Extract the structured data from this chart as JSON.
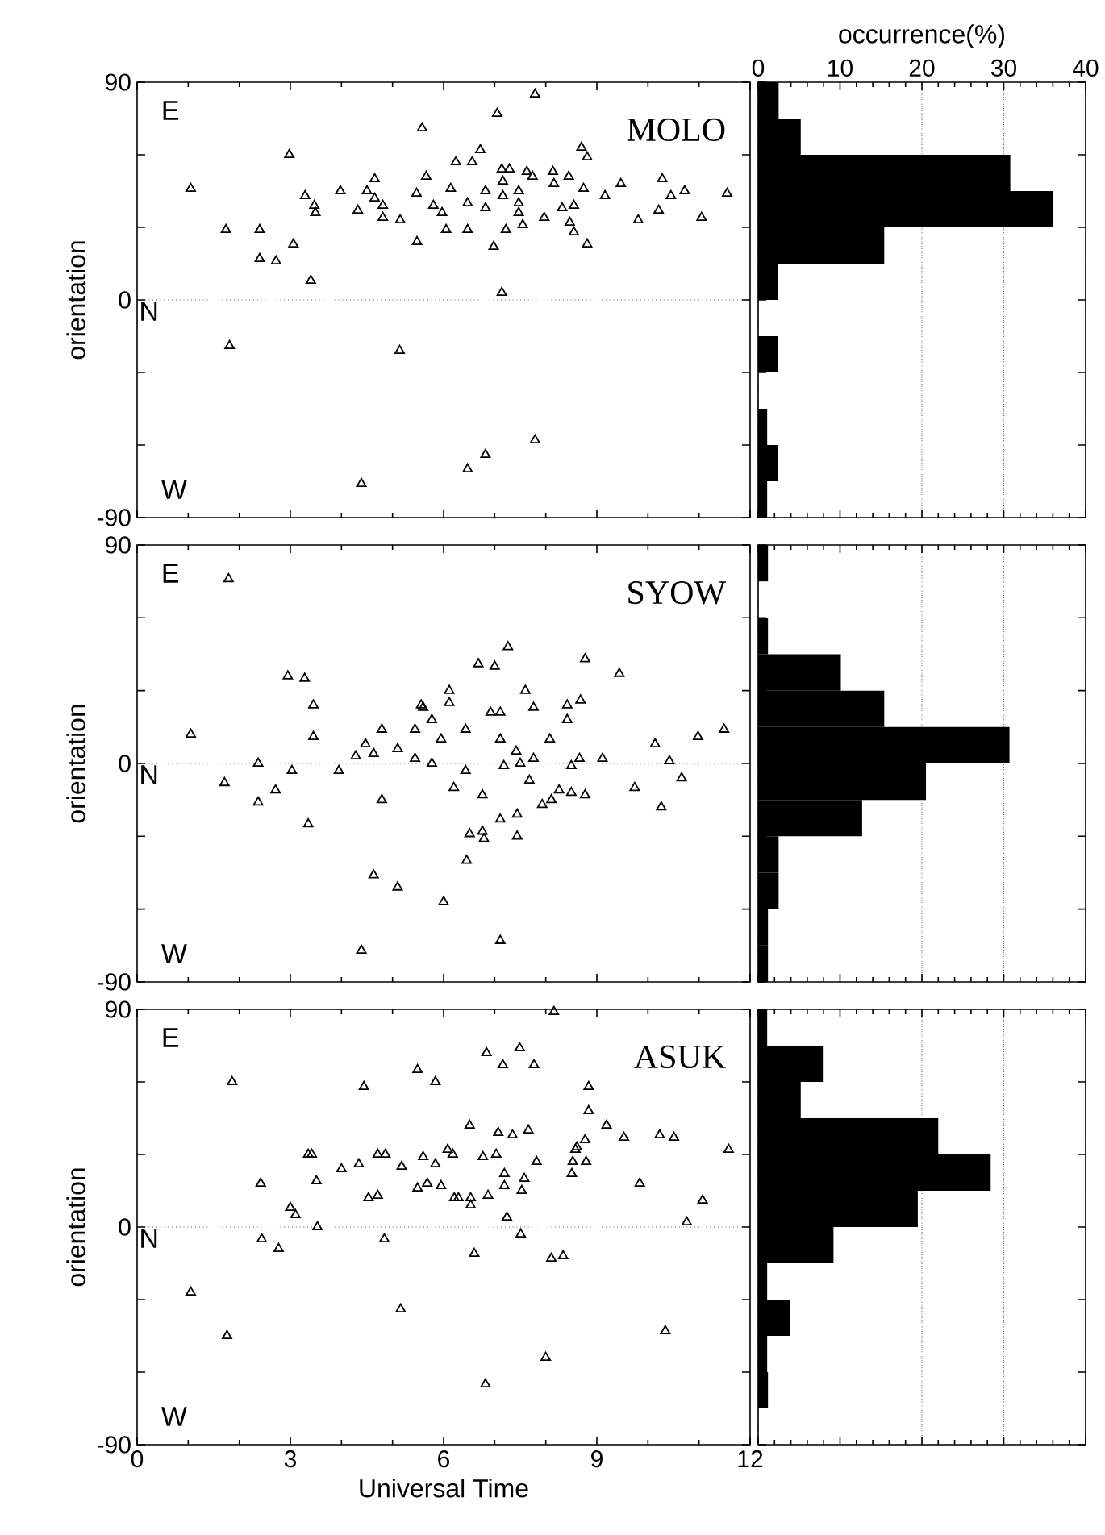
{
  "chart_data": [
    {
      "type": "scatter",
      "title": "MOLO",
      "ylabel": "orientation",
      "marker": "triangle",
      "color": "#000000",
      "x": [
        1.05,
        1.74,
        1.81,
        2.4,
        2.4,
        2.72,
        2.98,
        3.06,
        3.29,
        3.4,
        3.47,
        3.49,
        3.98,
        4.32,
        4.39,
        4.5,
        4.65,
        4.65,
        4.81,
        4.81,
        5.14,
        5.15,
        5.47,
        5.48,
        5.58,
        5.66,
        5.8,
        5.97,
        6.05,
        6.14,
        6.24,
        6.47,
        6.47,
        6.47,
        6.56,
        6.72,
        6.82,
        6.82,
        6.82,
        6.98,
        7.05,
        7.14,
        7.14,
        7.16,
        7.16,
        7.22,
        7.29,
        7.47,
        7.47,
        7.47,
        7.55,
        7.63,
        7.74,
        7.79,
        7.79,
        7.97,
        8.14,
        8.16,
        8.32,
        8.45,
        8.47,
        8.55,
        8.55,
        8.7,
        8.74,
        8.81,
        8.81,
        9.16,
        9.47,
        9.81,
        10.21,
        10.28,
        10.45,
        10.72,
        11.05,
        11.55
      ],
      "values": [
        46,
        29,
        -19,
        29,
        17,
        16,
        60,
        23,
        43,
        8,
        39,
        36,
        45,
        37,
        -76,
        45,
        50,
        42,
        39,
        34,
        -21,
        33,
        44,
        24,
        71,
        51,
        39,
        36,
        29,
        46,
        57,
        40,
        29,
        -70,
        57,
        62,
        38,
        45,
        -64,
        22,
        77,
        3,
        54,
        49,
        43,
        29,
        54,
        45,
        40,
        36,
        31,
        53,
        51,
        85,
        -58,
        34,
        53,
        48,
        38,
        51,
        32,
        39,
        28,
        63,
        46,
        59,
        23,
        43,
        48,
        33,
        37,
        50,
        43,
        45,
        34,
        44
      ],
      "xlim": [
        0,
        12
      ],
      "ylim": [
        -90,
        90
      ],
      "xticks": [
        0,
        3,
        6,
        9,
        12
      ],
      "yticks": [
        -90,
        {
          "value": -60,
          "label": null
        },
        {
          "value": -30,
          "label": null
        },
        0,
        {
          "value": 30,
          "label": null
        },
        {
          "value": 60,
          "label": null
        },
        90
      ],
      "tick_labels": "y",
      "ref_lines": [
        {
          "axis": "y",
          "value": 0,
          "label": "N",
          "line_style": "dotted"
        }
      ],
      "annotations": [
        "E",
        "W"
      ]
    },
    {
      "type": "histogram",
      "orientation": "horizontal",
      "color": "#000000",
      "xlabel": "occurrence(%)",
      "bins": [
        -90,
        -75,
        -60,
        -45,
        -30,
        -15,
        0,
        15,
        30,
        45,
        60,
        75,
        90
      ],
      "values": [
        1.1,
        2.4,
        1.1,
        0,
        2.4,
        0,
        2.4,
        15.4,
        36,
        30.8,
        5.2,
        2.5
      ],
      "xlim": [
        0,
        40
      ],
      "ylim": [
        -90,
        90
      ],
      "xticks": [
        0,
        10,
        20,
        30,
        40
      ],
      "yticks": [
        -90,
        -60,
        -30,
        0,
        30,
        60,
        90
      ],
      "grid": "x",
      "tick_labels": "x"
    },
    {
      "type": "scatter",
      "title": "SYOW",
      "ylabel": "orientation",
      "marker": "triangle",
      "color": "#000000",
      "x": [
        1.05,
        1.71,
        1.79,
        2.37,
        2.37,
        2.71,
        2.95,
        3.03,
        3.28,
        3.35,
        3.45,
        3.45,
        3.95,
        4.28,
        4.39,
        4.47,
        4.63,
        4.63,
        4.79,
        4.79,
        5.1,
        5.1,
        5.44,
        5.44,
        5.56,
        5.6,
        5.77,
        5.77,
        5.95,
        6.0,
        6.11,
        6.11,
        6.2,
        6.43,
        6.43,
        6.45,
        6.51,
        6.68,
        6.76,
        6.76,
        6.79,
        6.92,
        7.0,
        7.11,
        7.11,
        7.11,
        7.11,
        7.18,
        7.26,
        7.42,
        7.44,
        7.44,
        7.5,
        7.6,
        7.68,
        7.76,
        7.76,
        7.93,
        8.08,
        8.11,
        8.26,
        8.42,
        8.42,
        8.5,
        8.5,
        8.66,
        8.68,
        8.77,
        8.77,
        9.11,
        9.44,
        9.74,
        10.14,
        10.26,
        10.42,
        10.66,
        10.98,
        11.49
      ],
      "values": [
        12,
        -8,
        76,
        0,
        -16,
        -11,
        36,
        -3,
        35,
        -25,
        24,
        11,
        -3,
        3,
        -77,
        8,
        4,
        -46,
        14,
        -15,
        6,
        -51,
        14,
        2,
        24,
        23,
        18,
        0,
        10,
        -57,
        30,
        25,
        -10,
        14,
        -3,
        -40,
        -29,
        41,
        -13,
        -28,
        -31,
        21,
        40,
        21,
        10,
        -23,
        -73,
        -1,
        48,
        5,
        -21,
        -30,
        0,
        30,
        -7,
        23,
        2,
        -17,
        10,
        -15,
        -11,
        24,
        18,
        -1,
        -12,
        2,
        26,
        43,
        -13,
        2,
        37,
        -10,
        8,
        -18,
        1,
        -6,
        11,
        14
      ],
      "xlim": [
        0,
        12
      ],
      "ylim": [
        -90,
        90
      ],
      "xticks": [
        0,
        3,
        6,
        9,
        12
      ],
      "yticks": [
        -90,
        {
          "value": -60,
          "label": null
        },
        {
          "value": -30,
          "label": null
        },
        0,
        {
          "value": 30,
          "label": null
        },
        {
          "value": 60,
          "label": null
        },
        90
      ],
      "tick_labels": "y",
      "ref_lines": [
        {
          "axis": "y",
          "value": 0,
          "label": "N",
          "line_style": "dotted"
        }
      ],
      "annotations": [
        "E",
        "W"
      ]
    },
    {
      "type": "histogram",
      "orientation": "horizontal",
      "color": "#000000",
      "bins": [
        -90,
        -75,
        -60,
        -45,
        -30,
        -15,
        0,
        15,
        30,
        45,
        60,
        75,
        90
      ],
      "values": [
        1.2,
        1.2,
        2.5,
        2.5,
        12.7,
        20.5,
        30.7,
        15.4,
        10.1,
        1.2,
        0,
        1.2
      ],
      "xlim": [
        0,
        40
      ],
      "ylim": [
        -90,
        90
      ],
      "xticks": [
        0,
        10,
        20,
        30,
        40
      ],
      "yticks": [
        -90,
        -60,
        -30,
        0,
        30,
        60,
        90
      ],
      "grid": "x",
      "tick_labels": false
    },
    {
      "type": "scatter",
      "title": "ASUK",
      "ylabel": "orientation",
      "xlabel": "Universal Time",
      "marker": "triangle",
      "color": "#000000",
      "x": [
        1.05,
        1.76,
        1.86,
        2.42,
        2.44,
        2.77,
        3.0,
        3.1,
        3.35,
        3.42,
        3.51,
        3.53,
        4.0,
        4.34,
        4.44,
        4.53,
        4.71,
        4.71,
        4.84,
        4.86,
        5.16,
        5.18,
        5.49,
        5.49,
        5.6,
        5.68,
        5.84,
        5.84,
        5.95,
        6.08,
        6.18,
        6.21,
        6.29,
        6.51,
        6.53,
        6.53,
        6.6,
        6.77,
        6.82,
        6.84,
        6.87,
        7.03,
        7.07,
        7.16,
        7.19,
        7.19,
        7.24,
        7.35,
        7.49,
        7.51,
        7.53,
        7.58,
        7.66,
        7.77,
        7.82,
        8.0,
        8.11,
        8.16,
        8.34,
        8.51,
        8.53,
        8.58,
        8.61,
        8.77,
        8.79,
        8.84,
        8.84,
        9.19,
        9.53,
        9.84,
        10.23,
        10.34,
        10.51,
        10.76,
        11.07,
        11.58
      ],
      "values": [
        -27,
        -45,
        60,
        18,
        -5,
        -9,
        8,
        5,
        30,
        30,
        19,
        0,
        24,
        26,
        58,
        12,
        13,
        30,
        -5,
        30,
        -34,
        25,
        16,
        65,
        29,
        18,
        60,
        26,
        17,
        32,
        30,
        12,
        12,
        42,
        12,
        9,
        -11,
        29,
        -65,
        72,
        13,
        30,
        39,
        67,
        22,
        17,
        4,
        38,
        74,
        -3,
        15,
        20,
        40,
        67,
        27,
        -54,
        -13,
        89,
        -12,
        22,
        27,
        32,
        33,
        36,
        27,
        58,
        48,
        42,
        37,
        18,
        38,
        -43,
        37,
        2,
        11,
        32
      ],
      "xlim": [
        0,
        12
      ],
      "ylim": [
        -90,
        90
      ],
      "xticks": [
        0,
        3,
        6,
        9,
        12
      ],
      "yticks": [
        -90,
        {
          "value": -60,
          "label": null
        },
        {
          "value": -30,
          "label": null
        },
        0,
        {
          "value": 30,
          "label": null
        },
        {
          "value": 60,
          "label": null
        },
        90
      ],
      "ref_lines": [
        {
          "axis": "y",
          "value": 0,
          "label": "N",
          "line_style": "dotted"
        }
      ],
      "annotations": [
        "E",
        "W"
      ]
    },
    {
      "type": "histogram",
      "orientation": "horizontal",
      "color": "#000000",
      "bins": [
        -90,
        -75,
        -60,
        -45,
        -30,
        -15,
        0,
        15,
        30,
        45,
        60,
        75,
        90
      ],
      "values": [
        0,
        1.2,
        1.1,
        3.9,
        1.1,
        9.2,
        19.5,
        28.4,
        22,
        5.2,
        7.9,
        1.1
      ],
      "xlim": [
        0,
        40
      ],
      "ylim": [
        -90,
        90
      ],
      "xticks": [
        0,
        10,
        20,
        30,
        40
      ],
      "yticks": [
        -90,
        -60,
        -30,
        0,
        30,
        60,
        90
      ],
      "grid": "x",
      "tick_labels": false
    }
  ]
}
